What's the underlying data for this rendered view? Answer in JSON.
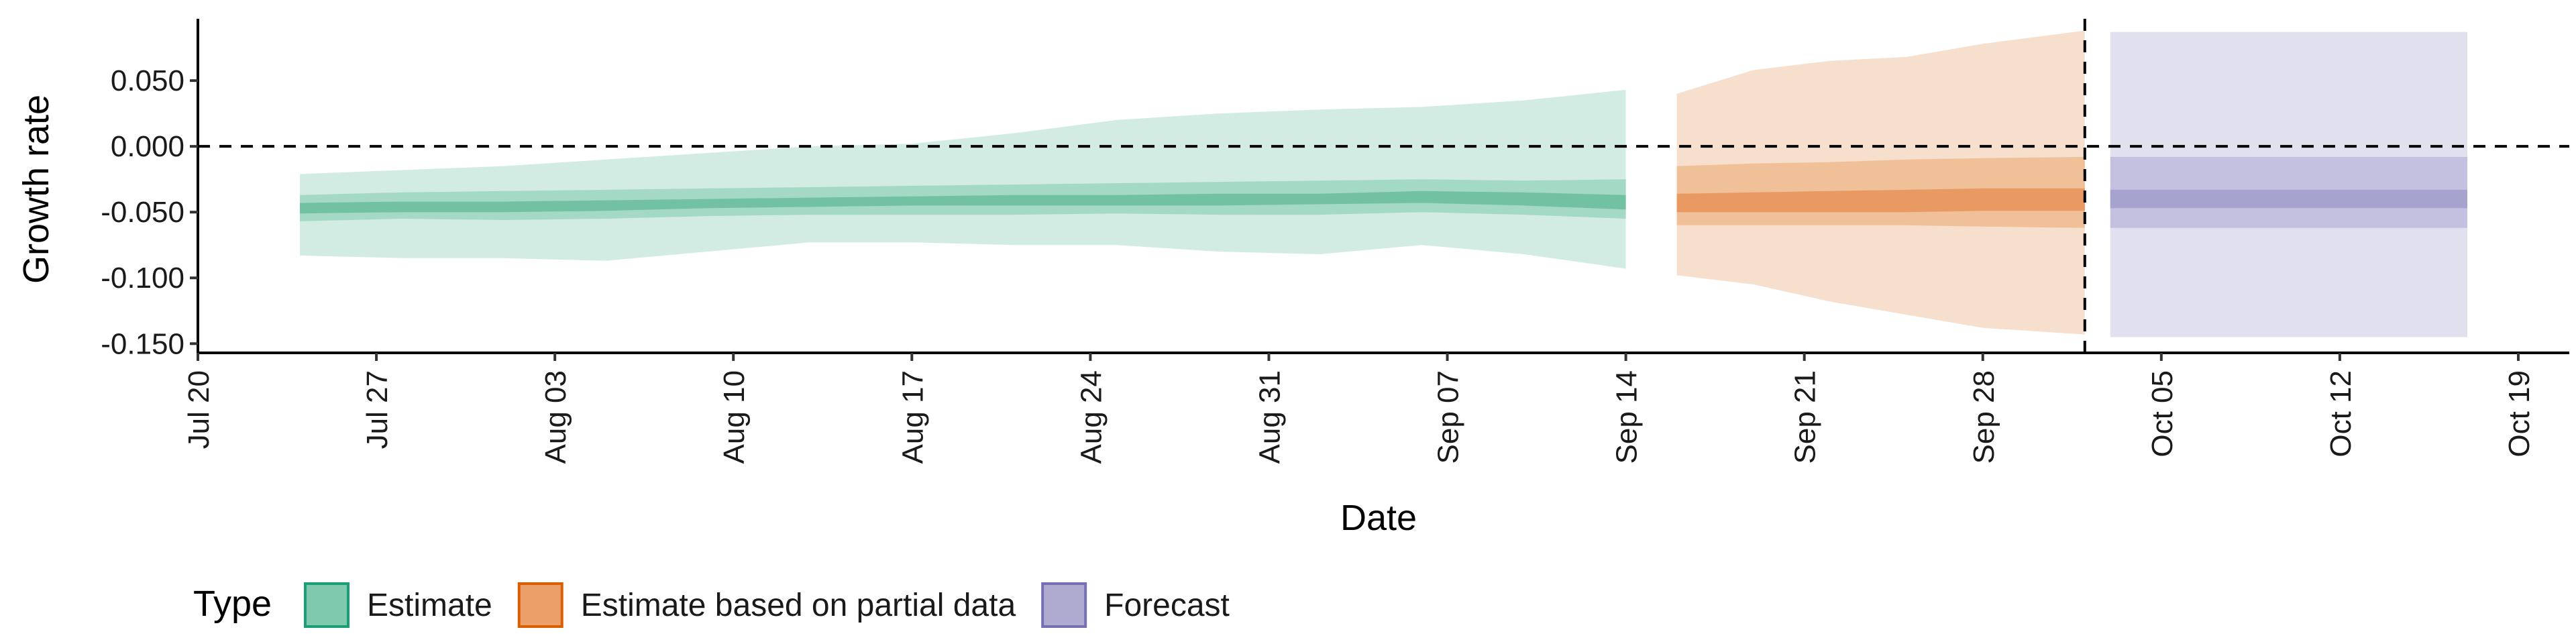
{
  "chart_data": {
    "type": "area",
    "xlabel": "Date",
    "ylabel": "Growth rate",
    "ylim": [
      -0.157,
      0.097
    ],
    "xlim": [
      "2021-07-20",
      "2021-10-21"
    ],
    "y_ticks": [
      {
        "value": 0.05,
        "label": "0.050"
      },
      {
        "value": 0.0,
        "label": "0.000"
      },
      {
        "value": -0.05,
        "label": "-0.050"
      },
      {
        "value": -0.1,
        "label": "-0.100"
      },
      {
        "value": -0.15,
        "label": "-0.150"
      }
    ],
    "x_ticks": [
      {
        "date": "2021-07-20",
        "label": "Jul 20"
      },
      {
        "date": "2021-07-27",
        "label": "Jul 27"
      },
      {
        "date": "2021-08-03",
        "label": "Aug 03"
      },
      {
        "date": "2021-08-10",
        "label": "Aug 10"
      },
      {
        "date": "2021-08-17",
        "label": "Aug 17"
      },
      {
        "date": "2021-08-24",
        "label": "Aug 24"
      },
      {
        "date": "2021-08-31",
        "label": "Aug 31"
      },
      {
        "date": "2021-09-07",
        "label": "Sep 07"
      },
      {
        "date": "2021-09-14",
        "label": "Sep 14"
      },
      {
        "date": "2021-09-21",
        "label": "Sep 21"
      },
      {
        "date": "2021-09-28",
        "label": "Sep 28"
      },
      {
        "date": "2021-10-05",
        "label": "Oct 05"
      },
      {
        "date": "2021-10-12",
        "label": "Oct 12"
      },
      {
        "date": "2021-10-19",
        "label": "Oct 19"
      }
    ],
    "reference_lines": [
      {
        "axis": "y",
        "value": 0.0,
        "style": "dashed"
      },
      {
        "axis": "x",
        "date": "2021-10-02",
        "style": "dashed"
      }
    ],
    "grid": false,
    "legend": {
      "title": "Type",
      "position": "bottom-left",
      "entries": [
        {
          "label": "Estimate",
          "fill": "#7fcaae",
          "stroke": "#1b9e77"
        },
        {
          "label": "Estimate based on partial data",
          "fill": "#eba06a",
          "stroke": "#d95f02"
        },
        {
          "label": "Forecast",
          "fill": "#aeaad0",
          "stroke": "#7570b3"
        }
      ]
    },
    "series": [
      {
        "name": "Estimate",
        "colors": {
          "outer": "#d3ece3",
          "mid": "#a4d9c5",
          "inner": "#72c1a3"
        },
        "x": [
          "2021-07-24",
          "2021-07-28",
          "2021-08-01",
          "2021-08-05",
          "2021-08-09",
          "2021-08-13",
          "2021-08-17",
          "2021-08-21",
          "2021-08-25",
          "2021-08-29",
          "2021-09-02",
          "2021-09-06",
          "2021-09-10",
          "2021-09-14"
        ],
        "lower90": [
          -0.083,
          -0.085,
          -0.085,
          -0.087,
          -0.08,
          -0.073,
          -0.073,
          -0.075,
          -0.075,
          -0.08,
          -0.082,
          -0.075,
          -0.082,
          -0.093
        ],
        "upper90": [
          -0.021,
          -0.018,
          -0.015,
          -0.01,
          -0.005,
          0.0,
          0.002,
          0.01,
          0.02,
          0.025,
          0.028,
          0.03,
          0.035,
          0.043
        ],
        "lower50": [
          -0.057,
          -0.055,
          -0.056,
          -0.055,
          -0.053,
          -0.052,
          -0.052,
          -0.052,
          -0.051,
          -0.052,
          -0.052,
          -0.05,
          -0.052,
          -0.055
        ],
        "upper50": [
          -0.037,
          -0.035,
          -0.034,
          -0.033,
          -0.032,
          -0.031,
          -0.03,
          -0.029,
          -0.028,
          -0.027,
          -0.026,
          -0.025,
          -0.026,
          -0.025
        ],
        "lower20": [
          -0.051,
          -0.05,
          -0.05,
          -0.049,
          -0.047,
          -0.046,
          -0.045,
          -0.045,
          -0.045,
          -0.045,
          -0.044,
          -0.043,
          -0.045,
          -0.048
        ],
        "upper20": [
          -0.043,
          -0.042,
          -0.042,
          -0.041,
          -0.04,
          -0.039,
          -0.038,
          -0.037,
          -0.037,
          -0.036,
          -0.036,
          -0.034,
          -0.035,
          -0.037
        ]
      },
      {
        "name": "Estimate based on partial data",
        "colors": {
          "outer": "#f6dfcc",
          "mid": "#f0c099",
          "inner": "#e89a62"
        },
        "x": [
          "2021-09-16",
          "2021-09-19",
          "2021-09-22",
          "2021-09-25",
          "2021-09-28",
          "2021-10-02"
        ],
        "lower90": [
          -0.098,
          -0.105,
          -0.118,
          -0.128,
          -0.138,
          -0.143
        ],
        "upper90": [
          0.04,
          0.058,
          0.065,
          0.068,
          0.078,
          0.088
        ],
        "lower50": [
          -0.06,
          -0.06,
          -0.06,
          -0.06,
          -0.061,
          -0.062
        ],
        "upper50": [
          -0.015,
          -0.013,
          -0.012,
          -0.01,
          -0.009,
          -0.008
        ],
        "lower20": [
          -0.05,
          -0.05,
          -0.05,
          -0.05,
          -0.049,
          -0.049
        ],
        "upper20": [
          -0.036,
          -0.035,
          -0.034,
          -0.033,
          -0.032,
          -0.032
        ]
      },
      {
        "name": "Forecast",
        "colors": {
          "outer": "#e1e0ef",
          "mid": "#c3c0e0",
          "inner": "#a7a3cf"
        },
        "x": [
          "2021-10-03",
          "2021-10-17"
        ],
        "lower90": [
          -0.145,
          -0.145
        ],
        "upper90": [
          0.087,
          0.087
        ],
        "lower50": [
          -0.062,
          -0.062
        ],
        "upper50": [
          -0.008,
          -0.008
        ],
        "lower20": [
          -0.047,
          -0.047
        ],
        "upper20": [
          -0.033,
          -0.033
        ]
      }
    ]
  }
}
